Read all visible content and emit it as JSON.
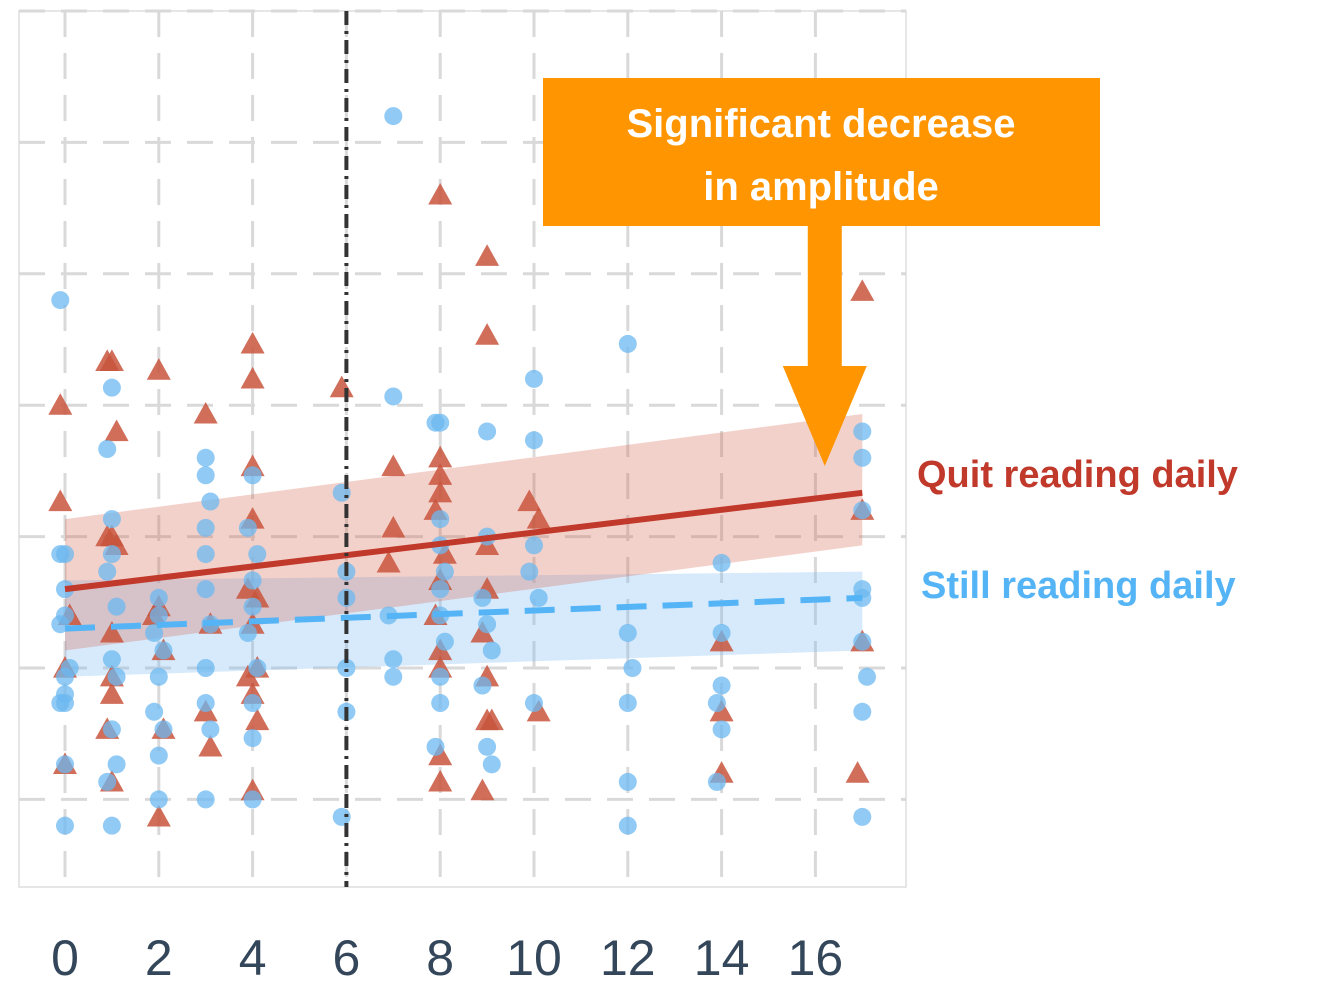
{
  "chart_data": {
    "type": "scatter",
    "title": "",
    "xlabel": "",
    "ylabel": "",
    "xlim": [
      -0.5,
      18.5
    ],
    "ylim": [
      0,
      100
    ],
    "x_ticks": [
      0,
      2,
      4,
      6,
      8,
      10,
      12,
      14,
      16
    ],
    "x_tick_labels": [
      "0",
      "2",
      "4",
      "6",
      "8",
      "10",
      "12",
      "14",
      "16"
    ],
    "y_ticks_shown": false,
    "grid": true,
    "vline_x": 6,
    "annotation": {
      "line1": "Significant decrease",
      "line2": "in amplitude",
      "target_x": 16.2,
      "color": "#ff9500"
    },
    "series": [
      {
        "name": "Quit reading daily",
        "marker": "triangle",
        "color": "#c0392b",
        "marker_color": "#c8553d",
        "line_style": "solid",
        "trend": {
          "x": [
            0,
            17
          ],
          "y": [
            34,
            45
          ]
        },
        "band": {
          "upper": [
            42,
            54
          ],
          "lower": [
            27,
            39
          ]
        },
        "points": [
          [
            -0.1,
            44
          ],
          [
            -0.1,
            55
          ],
          [
            0,
            25
          ],
          [
            0,
            14
          ],
          [
            0.1,
            31
          ],
          [
            1,
            60
          ],
          [
            0.9,
            60
          ],
          [
            1.1,
            52
          ],
          [
            1,
            40
          ],
          [
            0.9,
            40
          ],
          [
            1.1,
            39
          ],
          [
            1,
            29
          ],
          [
            1,
            24
          ],
          [
            1,
            22
          ],
          [
            0.9,
            18
          ],
          [
            1,
            12
          ],
          [
            2,
            59
          ],
          [
            2,
            32
          ],
          [
            1.9,
            31
          ],
          [
            2.1,
            27
          ],
          [
            2.1,
            18
          ],
          [
            2,
            8
          ],
          [
            3,
            54
          ],
          [
            3.1,
            30
          ],
          [
            3,
            20
          ],
          [
            3.1,
            16
          ],
          [
            4,
            62
          ],
          [
            4,
            58
          ],
          [
            4,
            48
          ],
          [
            4,
            42
          ],
          [
            3.9,
            34
          ],
          [
            4.1,
            33
          ],
          [
            4,
            30
          ],
          [
            4.1,
            25
          ],
          [
            3.9,
            24
          ],
          [
            4,
            22
          ],
          [
            4.1,
            19
          ],
          [
            4,
            11
          ],
          [
            5.9,
            57
          ],
          [
            7,
            48
          ],
          [
            7,
            41
          ],
          [
            6.9,
            37
          ],
          [
            8,
            79
          ],
          [
            8,
            49
          ],
          [
            8,
            47
          ],
          [
            8,
            45
          ],
          [
            7.9,
            43
          ],
          [
            8.1,
            38
          ],
          [
            8,
            35
          ],
          [
            7.9,
            31
          ],
          [
            8,
            27
          ],
          [
            8,
            25
          ],
          [
            8,
            15
          ],
          [
            8,
            12
          ],
          [
            9,
            72
          ],
          [
            9,
            63
          ],
          [
            9,
            39
          ],
          [
            9,
            34
          ],
          [
            8.9,
            29
          ],
          [
            9,
            24
          ],
          [
            9,
            19
          ],
          [
            9.1,
            19
          ],
          [
            8.9,
            11
          ],
          [
            9.9,
            44
          ],
          [
            10.1,
            42
          ],
          [
            10.1,
            20
          ],
          [
            14,
            28
          ],
          [
            14,
            20
          ],
          [
            14,
            13
          ],
          [
            17,
            68
          ],
          [
            17,
            43
          ],
          [
            17,
            28
          ],
          [
            16.9,
            13
          ]
        ]
      },
      {
        "name": "Still reading daily",
        "marker": "circle",
        "color": "#55b4f5",
        "marker_color": "#6cb8f0",
        "line_style": "dashed",
        "trend": {
          "x": [
            0,
            17
          ],
          "y": [
            29.5,
            33
          ]
        },
        "band": {
          "upper": [
            35,
            36
          ],
          "lower": [
            24,
            27
          ]
        },
        "points": [
          [
            -0.1,
            67
          ],
          [
            -0.1,
            38
          ],
          [
            0,
            38
          ],
          [
            0,
            34
          ],
          [
            0,
            31
          ],
          [
            -0.1,
            30
          ],
          [
            0,
            21
          ],
          [
            0.1,
            25
          ],
          [
            0,
            24
          ],
          [
            0,
            22
          ],
          [
            -0.1,
            21
          ],
          [
            0,
            14
          ],
          [
            0,
            7
          ],
          [
            1,
            57
          ],
          [
            0.9,
            50
          ],
          [
            1,
            42
          ],
          [
            1,
            38
          ],
          [
            0.9,
            36
          ],
          [
            1.1,
            32
          ],
          [
            1,
            26
          ],
          [
            1.1,
            24
          ],
          [
            1,
            18
          ],
          [
            1.1,
            14
          ],
          [
            0.9,
            12
          ],
          [
            1,
            7
          ],
          [
            2,
            33
          ],
          [
            2,
            31
          ],
          [
            1.9,
            29
          ],
          [
            2.1,
            27
          ],
          [
            2,
            24
          ],
          [
            1.9,
            20
          ],
          [
            2.1,
            18
          ],
          [
            2,
            15
          ],
          [
            2,
            10
          ],
          [
            3,
            49
          ],
          [
            3,
            47
          ],
          [
            3.1,
            44
          ],
          [
            3,
            41
          ],
          [
            3,
            38
          ],
          [
            3,
            34
          ],
          [
            3.1,
            30
          ],
          [
            3,
            25
          ],
          [
            3,
            21
          ],
          [
            3.1,
            18
          ],
          [
            3,
            10
          ],
          [
            4,
            47
          ],
          [
            3.9,
            41
          ],
          [
            4.1,
            38
          ],
          [
            4,
            35
          ],
          [
            4,
            32
          ],
          [
            3.9,
            29
          ],
          [
            4.1,
            25
          ],
          [
            4,
            21
          ],
          [
            4,
            17
          ],
          [
            4,
            10
          ],
          [
            5.9,
            45
          ],
          [
            6,
            36
          ],
          [
            6,
            33
          ],
          [
            6,
            25
          ],
          [
            6,
            20
          ],
          [
            5.9,
            8
          ],
          [
            7,
            88
          ],
          [
            7,
            56
          ],
          [
            6.9,
            31
          ],
          [
            7,
            26
          ],
          [
            7,
            24
          ],
          [
            8,
            53
          ],
          [
            7.9,
            53
          ],
          [
            8,
            42
          ],
          [
            8,
            39
          ],
          [
            8.1,
            36
          ],
          [
            8,
            34
          ],
          [
            8,
            31
          ],
          [
            8.1,
            28
          ],
          [
            8,
            24
          ],
          [
            8,
            21
          ],
          [
            7.9,
            16
          ],
          [
            9,
            52
          ],
          [
            9,
            40
          ],
          [
            8.9,
            33
          ],
          [
            9,
            30
          ],
          [
            9.1,
            27
          ],
          [
            8.9,
            23
          ],
          [
            9,
            16
          ],
          [
            9.1,
            14
          ],
          [
            10,
            58
          ],
          [
            10,
            51
          ],
          [
            10,
            39
          ],
          [
            9.9,
            36
          ],
          [
            10.1,
            33
          ],
          [
            10,
            21
          ],
          [
            12,
            62
          ],
          [
            12,
            29
          ],
          [
            12.1,
            25
          ],
          [
            12,
            21
          ],
          [
            12,
            12
          ],
          [
            12,
            7
          ],
          [
            14,
            37
          ],
          [
            14,
            29
          ],
          [
            14,
            23
          ],
          [
            13.9,
            21
          ],
          [
            14,
            18
          ],
          [
            13.9,
            12
          ],
          [
            17,
            52
          ],
          [
            17,
            49
          ],
          [
            17,
            43
          ],
          [
            17,
            34
          ],
          [
            17,
            33
          ],
          [
            17,
            28
          ],
          [
            17.1,
            24
          ],
          [
            17,
            20
          ],
          [
            17,
            8
          ]
        ]
      }
    ]
  }
}
